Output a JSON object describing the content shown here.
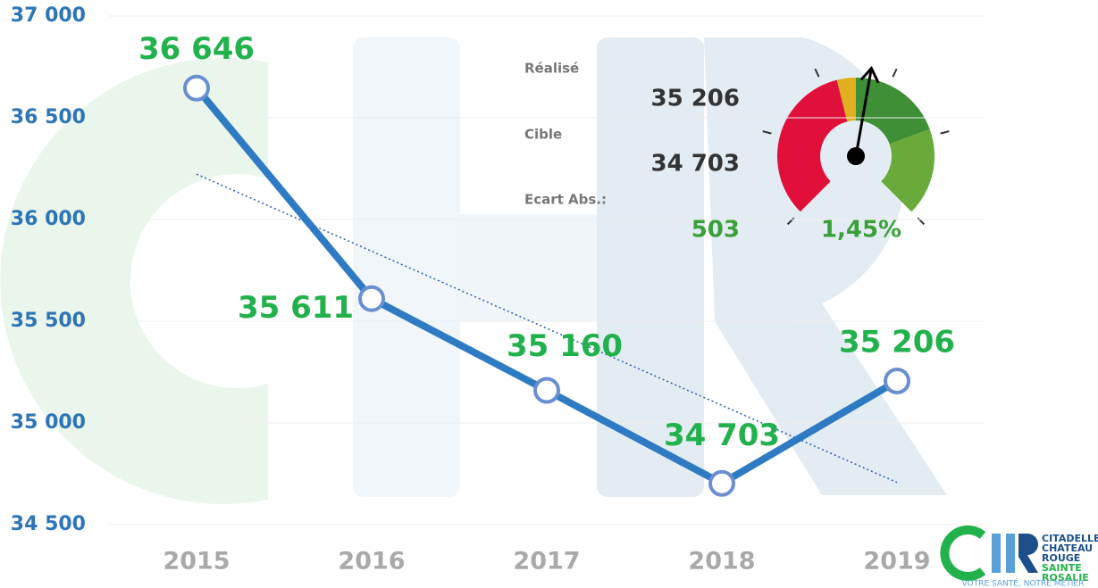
{
  "chart_data": {
    "type": "line",
    "categories": [
      "2015",
      "2016",
      "2017",
      "2018",
      "2019"
    ],
    "values": [
      36646,
      35611,
      35160,
      34703,
      35206
    ],
    "value_labels": [
      "36 646",
      "35 611",
      "35 160",
      "34 703",
      "35 206"
    ],
    "color": "#2e7bc4",
    "ylim": [
      34500,
      37000
    ],
    "yticks": [
      {
        "value": 34500,
        "label": "34 500"
      },
      {
        "value": 35000,
        "label": "35 000"
      },
      {
        "value": 35500,
        "label": "35 500"
      },
      {
        "value": 36000,
        "label": "36 000"
      },
      {
        "value": 36500,
        "label": "36 500"
      },
      {
        "value": 37000,
        "label": "37 000"
      }
    ],
    "grid": true,
    "trendline": true
  },
  "panel": {
    "labels": [
      "Réalisé",
      "Cible",
      "Ecart Abs.:"
    ],
    "values": [
      "35 206",
      "34 703",
      "503"
    ],
    "percent": "1,45%"
  },
  "logo": {
    "lines": [
      "CITADELLE",
      "CHATEAU",
      "ROUGE",
      "SAINTE",
      "ROSALIE"
    ],
    "tagline": "VOTRE SANTÉ, NOTRE MÉTIER"
  }
}
